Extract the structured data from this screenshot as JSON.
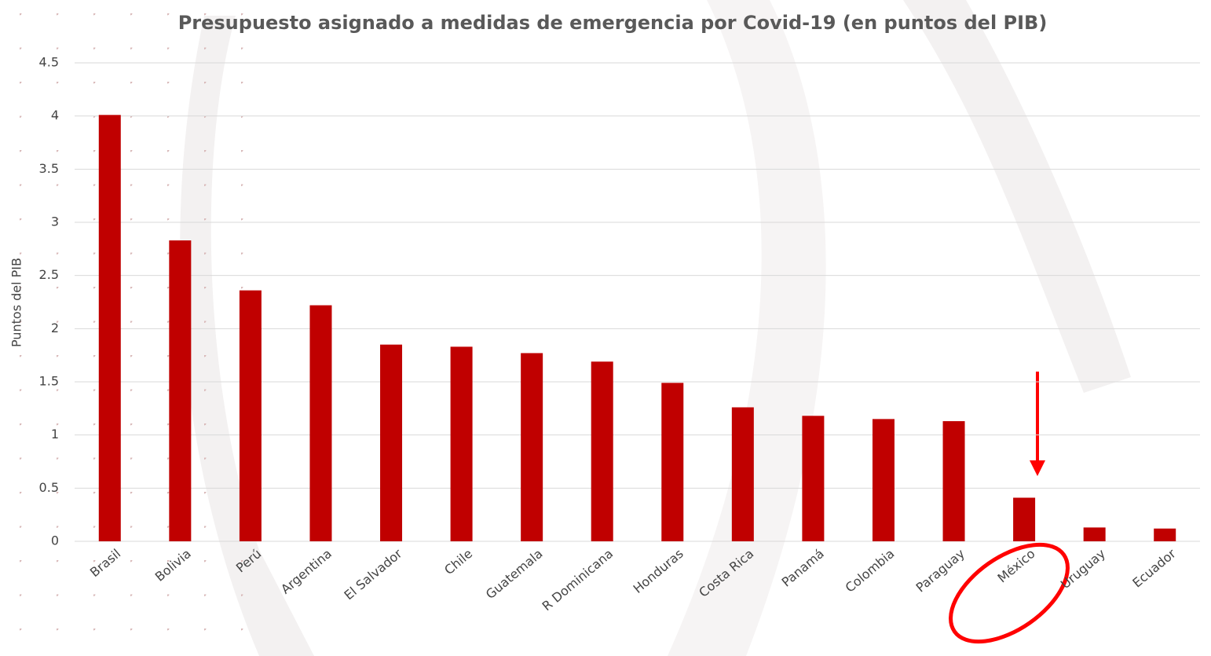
{
  "chart_data": {
    "type": "bar",
    "title": "Presupuesto asignado a medidas de emergencia por Covid-19 (en puntos del PIB)",
    "y_label": "Puntos del PIB",
    "categories": [
      "Brasil",
      "Bolivia",
      "Perú",
      "Argentina",
      "El Salvador",
      "Chile",
      "Guatemala",
      "R Dominicana",
      "Honduras",
      "Costa Rica",
      "Panamá",
      "Colombia",
      "Paraguay",
      "México",
      "Uruguay",
      "Ecuador"
    ],
    "values": [
      4.01,
      2.83,
      2.36,
      2.22,
      1.85,
      1.83,
      1.77,
      1.69,
      1.49,
      1.26,
      1.18,
      1.15,
      1.13,
      0.41,
      0.13,
      0.12
    ],
    "color": "#c00000",
    "ylim": [
      0,
      4.5
    ],
    "yticks": [
      0,
      0.5,
      1,
      1.5,
      2,
      2.5,
      3,
      3.5,
      4,
      4.5
    ],
    "grid": true
  }
}
